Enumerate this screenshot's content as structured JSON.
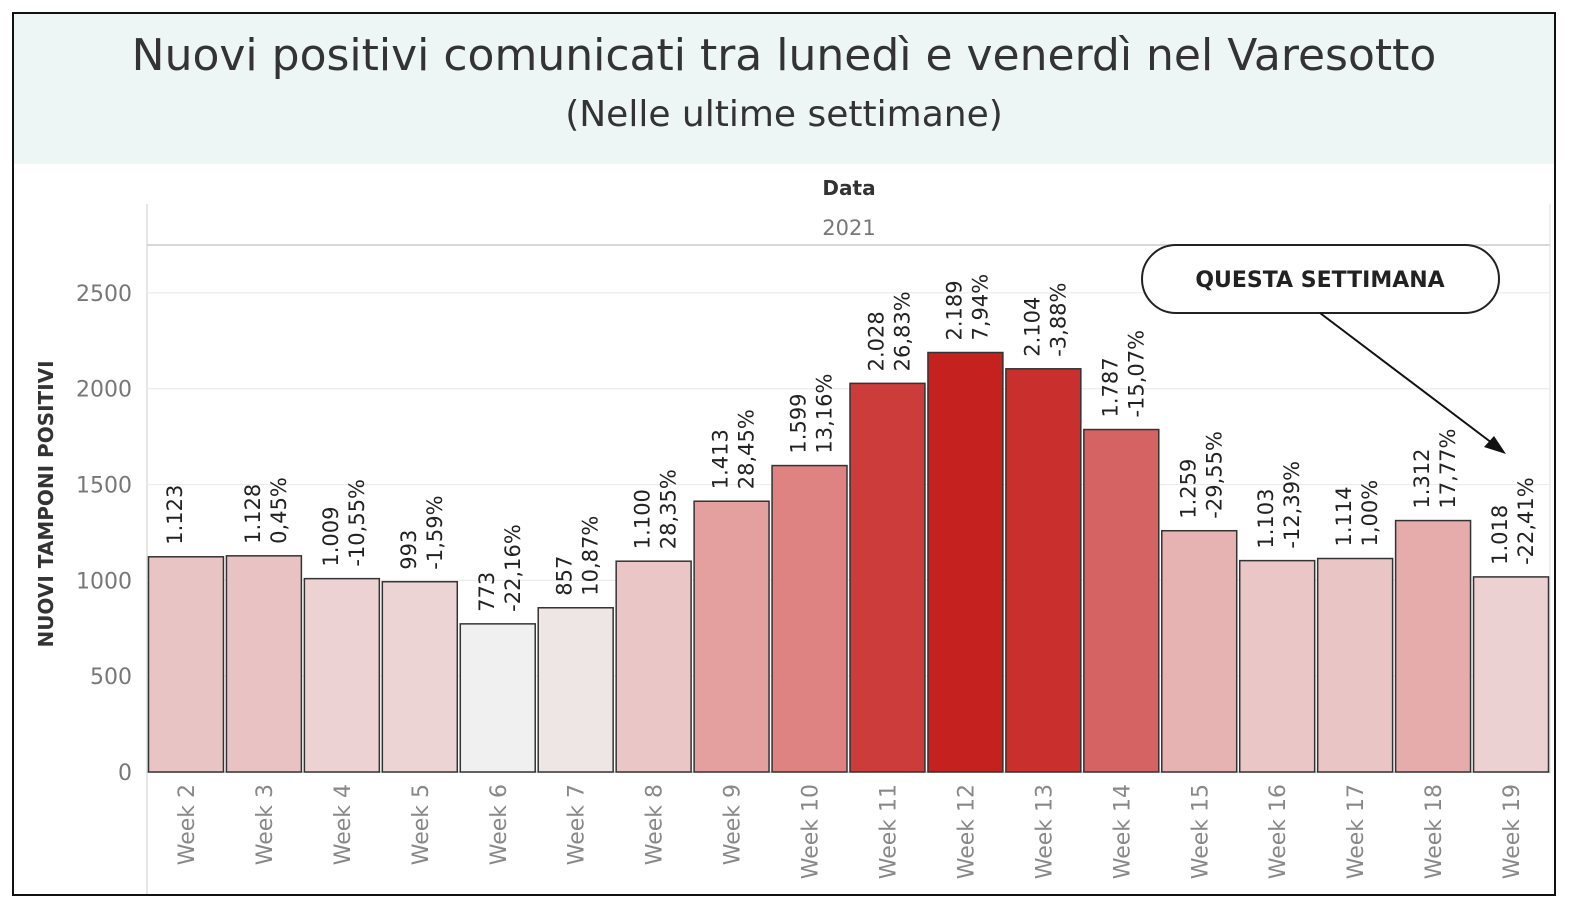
{
  "chart_data": {
    "type": "bar",
    "title": "Nuovi positivi comunicati tra lunedì e venerdì nel Varesotto",
    "subtitle": "(Nelle ultime settimane)",
    "column_header": "Data",
    "year": "2021",
    "ylabel": "NUOVI TAMPONI POSITIVI",
    "xlabel": "",
    "ylim": [
      0,
      2750
    ],
    "yticks": [
      0,
      500,
      1000,
      1500,
      2000,
      2500
    ],
    "grid": true,
    "categories": [
      "Week 2",
      "Week 3",
      "Week 4",
      "Week 5",
      "Week 6",
      "Week 7",
      "Week 8",
      "Week 9",
      "Week 10",
      "Week 11",
      "Week 12",
      "Week 13",
      "Week 14",
      "Week 15",
      "Week 16",
      "Week 17",
      "Week 18",
      "Week 19"
    ],
    "values": [
      1123,
      1128,
      1009,
      993,
      773,
      857,
      1100,
      1413,
      1599,
      2028,
      2189,
      2104,
      1787,
      1259,
      1103,
      1114,
      1312,
      1018
    ],
    "value_labels": [
      "1.123",
      "1.128",
      "1.009",
      "993",
      "773",
      "857",
      "1.100",
      "1.413",
      "1.599",
      "2.028",
      "2.189",
      "2.104",
      "1.787",
      "1.259",
      "1.103",
      "1.114",
      "1.312",
      "1.018"
    ],
    "pct_change_labels": [
      "",
      "0,45%",
      "-10,55%",
      "-1,59%",
      "-22,16%",
      "10,87%",
      "28,35%",
      "28,45%",
      "13,16%",
      "26,83%",
      "7,94%",
      "-3,88%",
      "-15,07%",
      "-29,55%",
      "-12,39%",
      "1,00%",
      "17,77%",
      "-22,41%"
    ],
    "color_scale": {
      "low": "#f0f0f0",
      "high": "#c4211f"
    },
    "annotation": {
      "text": "QUESTA SETTIMANA",
      "target": "Week 19"
    }
  }
}
